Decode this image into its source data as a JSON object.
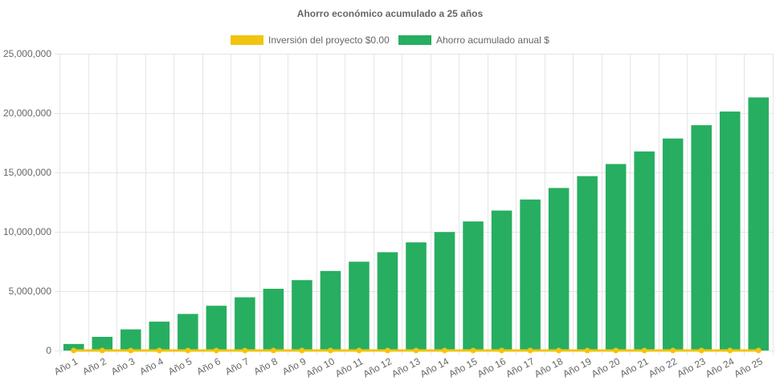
{
  "chart_data": {
    "type": "bar",
    "title": "Ahorro económico acumulado a 25 años",
    "categories": [
      "Año 1",
      "Año 2",
      "Año 3",
      "Año 4",
      "Año 5",
      "Año 6",
      "Año 7",
      "Año 8",
      "Año 9",
      "Año 10",
      "Año 11",
      "Año 12",
      "Año 13",
      "Año 14",
      "Año 15",
      "Año 16",
      "Año 17",
      "Año 18",
      "Año 19",
      "Año 20",
      "Año 21",
      "Año 22",
      "Año 23",
      "Año 24",
      "Año 25"
    ],
    "series": [
      {
        "name": "Inversión del proyecto $0.00",
        "type": "line",
        "color": "#f1c40f",
        "values": [
          0,
          0,
          0,
          0,
          0,
          0,
          0,
          0,
          0,
          0,
          0,
          0,
          0,
          0,
          0,
          0,
          0,
          0,
          0,
          0,
          0,
          0,
          0,
          0,
          0
        ]
      },
      {
        "name": "Ahorro acumulado anual $",
        "type": "bar",
        "color": "#27ae60",
        "values": [
          550000,
          1150000,
          1780000,
          2430000,
          3080000,
          3770000,
          4480000,
          5200000,
          5930000,
          6700000,
          7480000,
          8280000,
          9110000,
          9980000,
          10870000,
          11790000,
          12720000,
          13690000,
          14690000,
          15710000,
          16770000,
          17860000,
          18980000,
          20130000,
          21320000
        ]
      }
    ],
    "ylim": [
      0,
      25000000
    ],
    "yticks": [
      "0",
      "5,000,000",
      "10,000,000",
      "15,000,000",
      "20,000,000",
      "25,000,000"
    ],
    "ytick_values": [
      0,
      5000000,
      10000000,
      15000000,
      20000000,
      25000000
    ],
    "xlabel": "",
    "ylabel": "",
    "grid": true,
    "legend_position": "top"
  }
}
